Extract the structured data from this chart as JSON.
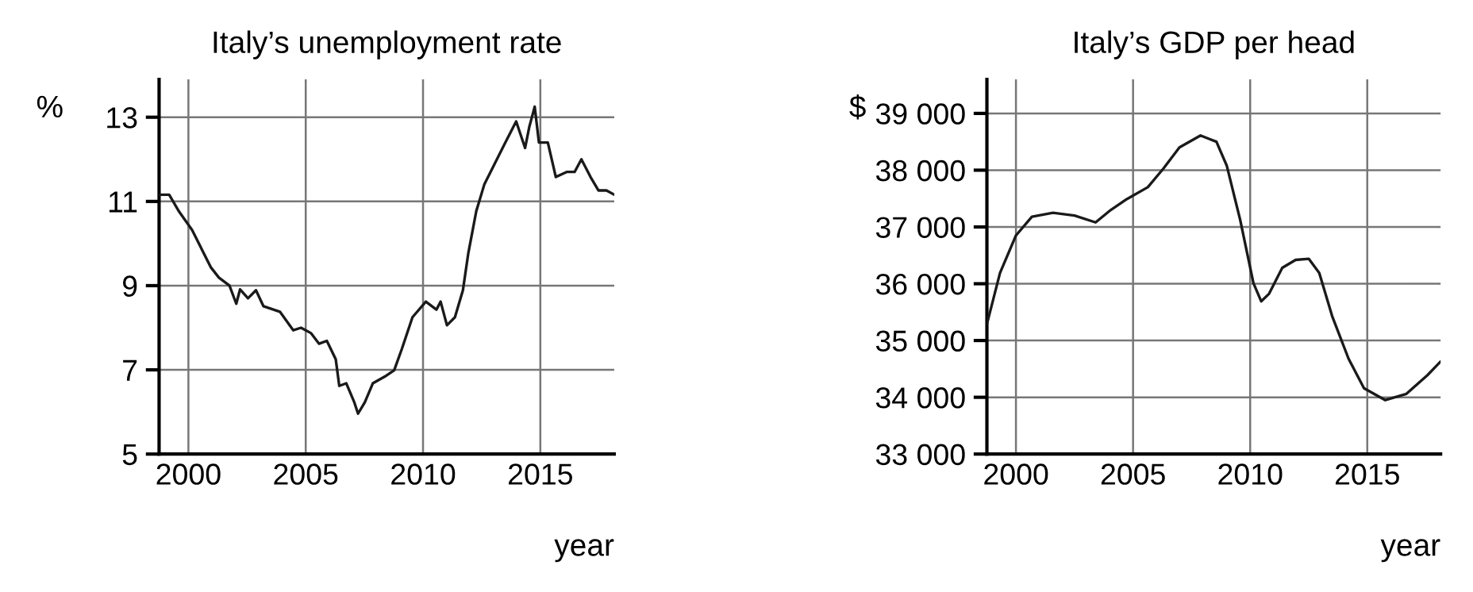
{
  "chart_data": [
    {
      "type": "line",
      "title": "Italy’s unemployment rate",
      "xlabel": "year",
      "ylabel": "%",
      "series": [
        {
          "color": "#1a1a1a",
          "x": [
            1998.75,
            1999.18,
            1999.6,
            2000.16,
            2000.5,
            2000.95,
            2001.3,
            2001.75,
            2002.04,
            2002.2,
            2002.54,
            2002.88,
            2003.2,
            2003.9,
            2004.47,
            2004.8,
            2005.23,
            2005.57,
            2005.9,
            2006.28,
            2006.43,
            2006.73,
            2007.07,
            2007.23,
            2007.52,
            2007.86,
            2008.43,
            2008.77,
            2009.1,
            2009.55,
            2010.12,
            2010.57,
            2010.75,
            2011.02,
            2011.36,
            2011.7,
            2011.93,
            2012.27,
            2012.61,
            2013.06,
            2013.51,
            2013.97,
            2014.35,
            2014.53,
            2014.76,
            2014.94,
            2015.32,
            2015.66,
            2016.12,
            2016.46,
            2016.75,
            2017.14,
            2017.48,
            2017.82,
            2018.15
          ],
          "values": [
            11.16,
            11.16,
            10.76,
            10.32,
            9.94,
            9.44,
            9.19,
            9.0,
            8.57,
            8.91,
            8.7,
            8.89,
            8.51,
            8.38,
            7.94,
            8.0,
            7.87,
            7.62,
            7.69,
            7.25,
            6.62,
            6.68,
            6.23,
            5.96,
            6.23,
            6.68,
            6.86,
            6.99,
            7.5,
            8.25,
            8.62,
            8.43,
            8.62,
            8.06,
            8.25,
            8.89,
            9.77,
            10.77,
            11.4,
            11.9,
            12.4,
            12.9,
            12.27,
            12.77,
            13.25,
            12.4,
            12.4,
            11.58,
            11.7,
            11.7,
            12.0,
            11.58,
            11.26,
            11.26,
            11.16
          ]
        }
      ],
      "xlim": [
        1998.75,
        2018.15
      ],
      "xticks": [
        2000,
        2005,
        2010,
        2015
      ],
      "ylim": [
        5,
        13.9
      ],
      "yticks": [
        5,
        7,
        9,
        11,
        13
      ],
      "grid": true,
      "legend": false,
      "line_style": "solid",
      "marker": "none"
    },
    {
      "type": "line",
      "title": "Italy’s GDP per head",
      "xlabel": "year",
      "ylabel": "$",
      "series": [
        {
          "color": "#1a1a1a",
          "x": [
            1998.76,
            1999.32,
            2000,
            2000.68,
            2001.58,
            2002.5,
            2003.4,
            2004.05,
            2004.73,
            2005.63,
            2006.3,
            2006.98,
            2007.88,
            2008.56,
            2009,
            2009.57,
            2010.14,
            2010.47,
            2010.8,
            2011.37,
            2011.94,
            2012.5,
            2012.95,
            2013.5,
            2014.2,
            2014.86,
            2015.77,
            2016.67,
            2017.57,
            2018.13
          ],
          "values": [
            35290,
            36190,
            36850,
            37180,
            37250,
            37200,
            37080,
            37300,
            37490,
            37700,
            38030,
            38400,
            38610,
            38500,
            38080,
            37130,
            36010,
            35690,
            35820,
            36280,
            36420,
            36440,
            36190,
            35430,
            34680,
            34160,
            33950,
            34060,
            34390,
            34630
          ]
        }
      ],
      "xlim": [
        1998.76,
        2018.13
      ],
      "xticks": [
        2000,
        2005,
        2010,
        2015
      ],
      "ylim": [
        33000,
        39600
      ],
      "yticks": [
        {
          "value": 33000,
          "label": "33 000"
        },
        {
          "value": 34000,
          "label": "34 000"
        },
        {
          "value": 35000,
          "label": "35 000"
        },
        {
          "value": 36000,
          "label": "36 000"
        },
        {
          "value": 37000,
          "label": "37 000"
        },
        {
          "value": 38000,
          "label": "38 000"
        },
        {
          "value": 39000,
          "label": "39 000"
        }
      ],
      "grid": true,
      "legend": false,
      "line_style": "solid",
      "marker": "none"
    }
  ]
}
